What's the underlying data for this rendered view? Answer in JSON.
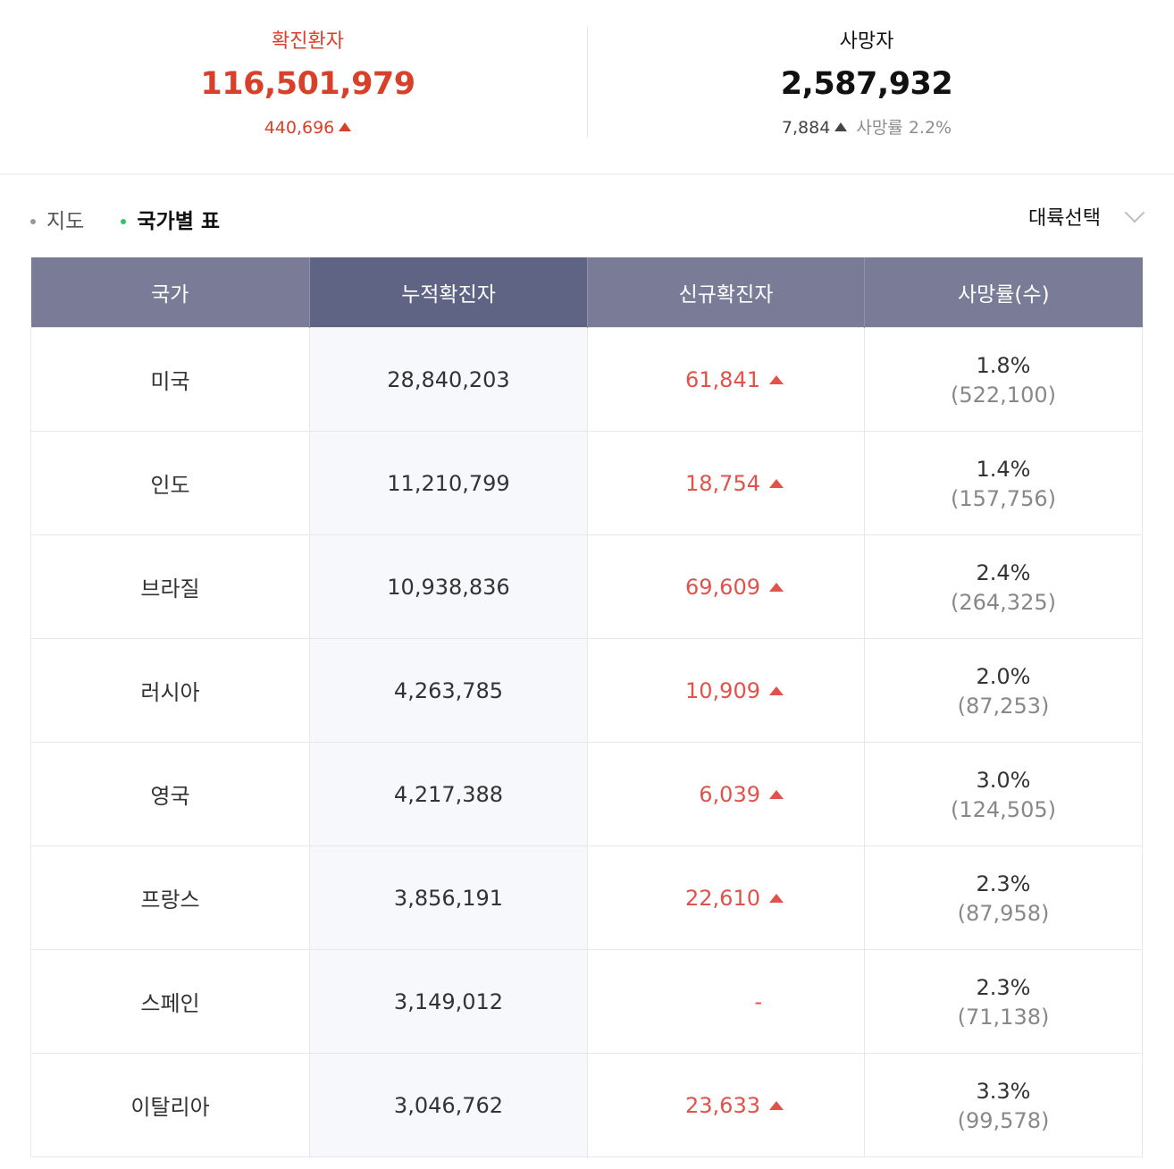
{
  "summary": {
    "confirmed": {
      "title": "확진환자",
      "value": "116,501,979",
      "delta": "440,696"
    },
    "deaths": {
      "title": "사망자",
      "value": "2,587,932",
      "delta": "7,884",
      "rate_label": "사망률 2.2%"
    }
  },
  "tabs": [
    {
      "label": "지도",
      "active": false
    },
    {
      "label": "국가별 표",
      "active": true
    }
  ],
  "continent_select": {
    "label": "대륙선택"
  },
  "table": {
    "headers": [
      "국가",
      "누적확진자",
      "신규확진자",
      "사망률(수)"
    ],
    "rows": [
      {
        "country": "미국",
        "total": "28,840,203",
        "new": "61,841",
        "rate": "1.8%",
        "deaths": "(522,100)"
      },
      {
        "country": "인도",
        "total": "11,210,799",
        "new": "18,754",
        "rate": "1.4%",
        "deaths": "(157,756)"
      },
      {
        "country": "브라질",
        "total": "10,938,836",
        "new": "69,609",
        "rate": "2.4%",
        "deaths": "(264,325)"
      },
      {
        "country": "러시아",
        "total": "4,263,785",
        "new": "10,909",
        "rate": "2.0%",
        "deaths": "(87,253)"
      },
      {
        "country": "영국",
        "total": "4,217,388",
        "new": "6,039",
        "rate": "3.0%",
        "deaths": "(124,505)"
      },
      {
        "country": "프랑스",
        "total": "3,856,191",
        "new": "22,610",
        "rate": "2.3%",
        "deaths": "(87,958)"
      },
      {
        "country": "스페인",
        "total": "3,149,012",
        "new": "-",
        "rate": "2.3%",
        "deaths": "(71,138)"
      },
      {
        "country": "이탈리아",
        "total": "3,046,762",
        "new": "23,633",
        "rate": "3.3%",
        "deaths": "(99,578)"
      }
    ]
  },
  "colors": {
    "confirmed": "#d9402a",
    "new_cases": "#e0524a",
    "header": "#7a7c97",
    "header_sorted": "#5f6384",
    "active_dot": "#35c26b"
  }
}
